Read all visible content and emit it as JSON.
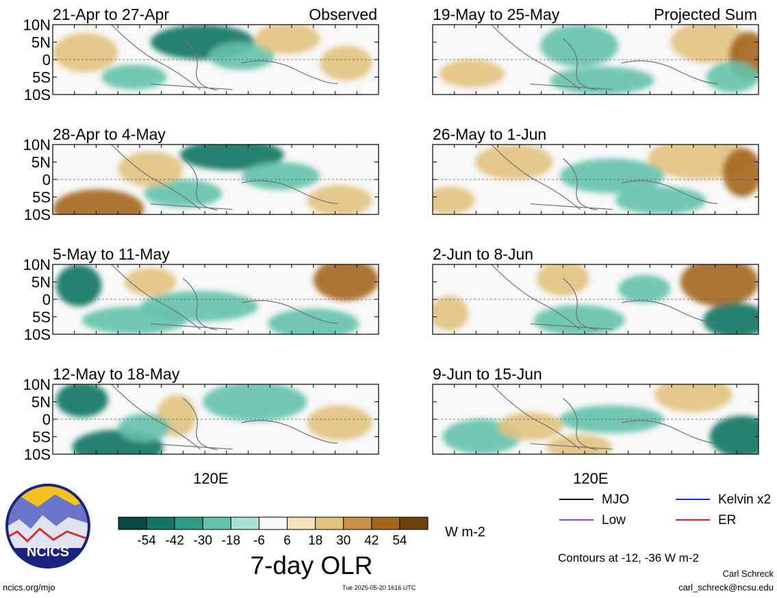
{
  "chart_data": {
    "type": "heatmap",
    "title": "7-day OLR",
    "units": "W m-2",
    "panel_groups": [
      "Observed",
      "Projected Sum"
    ],
    "y_ticks": [
      "10N",
      "5N",
      "0",
      "5S",
      "10S"
    ],
    "x_tick_label": "120E",
    "panels": [
      {
        "title": "21-Apr to 27-Apr",
        "group": "Observed",
        "column": "left",
        "row": 0
      },
      {
        "title": "28-Apr to 4-May",
        "group": "Observed",
        "column": "left",
        "row": 1
      },
      {
        "title": "5-May to 11-May",
        "group": "Observed",
        "column": "left",
        "row": 2
      },
      {
        "title": "12-May to 18-May",
        "group": "Observed",
        "column": "left",
        "row": 3
      },
      {
        "title": "19-May to 25-May",
        "group": "Projected Sum",
        "column": "right",
        "row": 0
      },
      {
        "title": "26-May to 1-Jun",
        "group": "Projected Sum",
        "column": "right",
        "row": 1
      },
      {
        "title": "2-Jun to 8-Jun",
        "group": "Projected Sum",
        "column": "right",
        "row": 2
      },
      {
        "title": "9-Jun to 15-Jun",
        "group": "Projected Sum",
        "column": "right",
        "row": 3
      }
    ],
    "colorbar": {
      "colors": [
        "#0b4a3e",
        "#137562",
        "#2f9b83",
        "#64c2ab",
        "#a9e0d1",
        "#f8f8f8",
        "#f4e2ba",
        "#e2c27f",
        "#c9944a",
        "#a4661d",
        "#6f410c"
      ],
      "tick_labels": [
        "-54",
        "-42",
        "-30",
        "-18",
        "-6",
        "6",
        "18",
        "30",
        "42",
        "54"
      ]
    },
    "legend": [
      {
        "label": "MJO",
        "color": "#000000"
      },
      {
        "label": "Kelvin x2",
        "color": "#1030d8"
      },
      {
        "label": "Low",
        "color": "#9a3be0"
      },
      {
        "label": "ER",
        "color": "#e01818"
      }
    ],
    "contour_note": "Contours at -12, -36 W m-2"
  },
  "logo": {
    "text": "NCICS"
  },
  "footer": {
    "left": "ncics.org/mjo",
    "center": "Tue 2025-05-20 1616 UTC",
    "author": "Carl Schreck",
    "email": "carl_schreck@ncsu.edu"
  }
}
